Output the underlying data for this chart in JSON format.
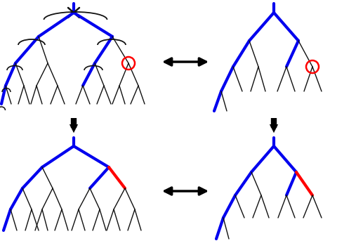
{
  "bg_color": "#ffffff",
  "blue": "#0000ee",
  "red": "#ff0000",
  "black": "#111111",
  "thick": 3.0,
  "thin": 1.0,
  "fig_w": 5.17,
  "fig_h": 3.53,
  "dpi": 100
}
